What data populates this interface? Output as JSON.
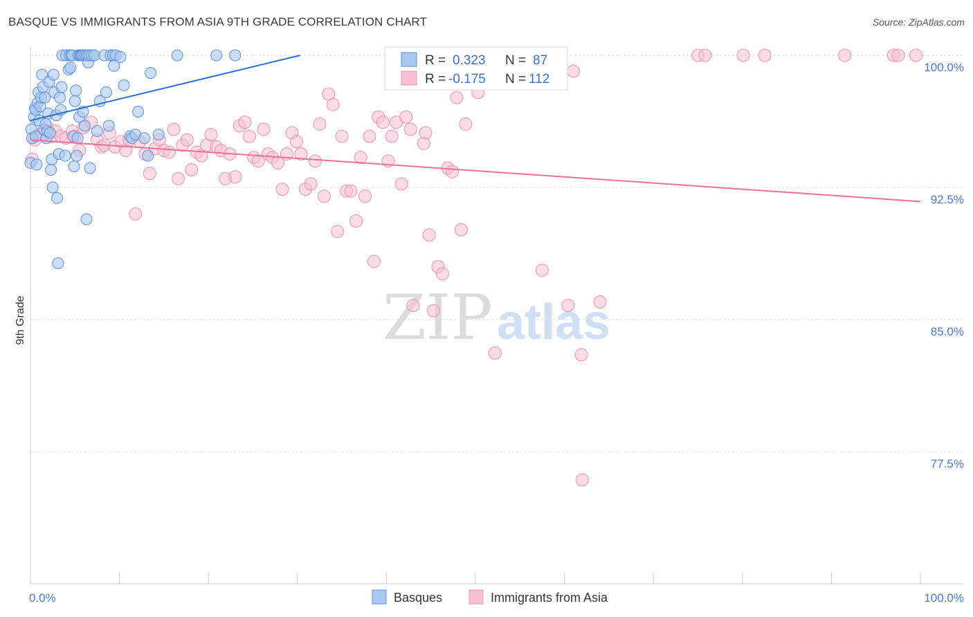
{
  "title": "BASQUE VS IMMIGRANTS FROM ASIA 9TH GRADE CORRELATION CHART",
  "source": "Source: ZipAtlas.com",
  "watermark": {
    "zip": "ZIP",
    "atlas": "atlas"
  },
  "legend": {
    "r_label": "R =",
    "n_label": "N =",
    "basque": {
      "r": "0.323",
      "n": "87"
    },
    "asia": {
      "r": "-0.175",
      "n": "112"
    }
  },
  "colors": {
    "basque_fill": "#aac8f0",
    "basque_stroke": "#5b8fd8",
    "basque_line": "#2a6ed1",
    "asia_fill": "#f8c0d2",
    "asia_stroke": "#ee90b0",
    "asia_line": "#e8709a",
    "axis_text": "#4a78c8",
    "grid": "#dddddd"
  },
  "chart_data": {
    "type": "scatter",
    "title": "BASQUE VS IMMIGRANTS FROM ASIA 9TH GRADE CORRELATION CHART",
    "xlabel": "",
    "ylabel": "9th Grade",
    "xlim": [
      0,
      100
    ],
    "ylim": [
      70.5,
      100.7
    ],
    "x_tick_labels": [
      "0.0%",
      "100.0%"
    ],
    "y_ticks": [
      {
        "value": 100.0,
        "label": "100.0%"
      },
      {
        "value": 92.5,
        "label": "92.5%"
      },
      {
        "value": 85.0,
        "label": "85.0%"
      },
      {
        "value": 77.5,
        "label": "77.5%"
      }
    ],
    "series": [
      {
        "name": "Basques",
        "r": 0.323,
        "n": 87,
        "trend": {
          "x": [
            0,
            30.3
          ],
          "y": [
            96.3,
            100.0
          ]
        },
        "points": [
          [
            0.0,
            93.9
          ],
          [
            0.1,
            95.8
          ],
          [
            0.2,
            95.3
          ],
          [
            0.4,
            96.5
          ],
          [
            0.5,
            97.0
          ],
          [
            0.6,
            96.9
          ],
          [
            0.6,
            95.4
          ],
          [
            0.7,
            93.8
          ],
          [
            0.8,
            97.3
          ],
          [
            0.9,
            97.9
          ],
          [
            1.0,
            96.3
          ],
          [
            1.1,
            97.1
          ],
          [
            1.2,
            97.6
          ],
          [
            1.3,
            98.9
          ],
          [
            1.4,
            98.2
          ],
          [
            1.5,
            95.8
          ],
          [
            1.6,
            97.6
          ],
          [
            1.7,
            96.1
          ],
          [
            1.8,
            95.3
          ],
          [
            1.9,
            95.7
          ],
          [
            2.0,
            96.7
          ],
          [
            2.1,
            98.5
          ],
          [
            2.2,
            95.6
          ],
          [
            2.3,
            93.5
          ],
          [
            2.4,
            94.1
          ],
          [
            2.5,
            92.5
          ],
          [
            2.6,
            98.9
          ],
          [
            2.7,
            97.9
          ],
          [
            2.9,
            96.6
          ],
          [
            3.0,
            91.9
          ],
          [
            3.1,
            88.2
          ],
          [
            3.2,
            94.4
          ],
          [
            3.3,
            97.6
          ],
          [
            3.4,
            96.9
          ],
          [
            3.5,
            98.2
          ],
          [
            3.6,
            100.0
          ],
          [
            3.9,
            94.3
          ],
          [
            4.0,
            100.0
          ],
          [
            4.3,
            99.2
          ],
          [
            4.4,
            100.0
          ],
          [
            4.5,
            99.3
          ],
          [
            4.6,
            100.0
          ],
          [
            4.7,
            100.0
          ],
          [
            4.8,
            95.4
          ],
          [
            4.9,
            93.7
          ],
          [
            5.0,
            97.4
          ],
          [
            5.1,
            98.0
          ],
          [
            5.2,
            94.3
          ],
          [
            5.3,
            95.3
          ],
          [
            5.4,
            100.0
          ],
          [
            5.5,
            96.5
          ],
          [
            5.6,
            100.0
          ],
          [
            5.7,
            100.0
          ],
          [
            5.8,
            100.0
          ],
          [
            5.9,
            96.8
          ],
          [
            6.0,
            100.0
          ],
          [
            6.1,
            96.0
          ],
          [
            6.2,
            100.0
          ],
          [
            6.3,
            90.7
          ],
          [
            6.4,
            100.0
          ],
          [
            6.5,
            99.6
          ],
          [
            6.6,
            100.0
          ],
          [
            6.7,
            93.6
          ],
          [
            6.9,
            100.0
          ],
          [
            7.2,
            100.0
          ],
          [
            7.5,
            95.7
          ],
          [
            7.8,
            97.4
          ],
          [
            8.3,
            100.0
          ],
          [
            8.5,
            97.9
          ],
          [
            8.8,
            96.0
          ],
          [
            9.0,
            100.0
          ],
          [
            9.3,
            100.0
          ],
          [
            9.4,
            99.4
          ],
          [
            9.6,
            100.0
          ],
          [
            10.1,
            99.9
          ],
          [
            10.5,
            98.3
          ],
          [
            11.2,
            95.4
          ],
          [
            11.4,
            95.3
          ],
          [
            11.8,
            95.5
          ],
          [
            12.1,
            96.8
          ],
          [
            12.8,
            95.3
          ],
          [
            13.2,
            94.3
          ],
          [
            13.5,
            99.0
          ],
          [
            14.4,
            95.5
          ],
          [
            16.5,
            100.0
          ],
          [
            20.9,
            100.0
          ],
          [
            23.0,
            100.0
          ]
        ]
      },
      {
        "name": "Immigrants from Asia",
        "r": -0.175,
        "n": 112,
        "trend": {
          "x": [
            0,
            100
          ],
          "y": [
            95.2,
            91.7
          ]
        },
        "points": [
          [
            0.2,
            94.1
          ],
          [
            0.5,
            95.2
          ],
          [
            1.0,
            95.5
          ],
          [
            1.4,
            95.5
          ],
          [
            1.9,
            95.9
          ],
          [
            2.4,
            95.4
          ],
          [
            2.8,
            95.7
          ],
          [
            3.4,
            95.4
          ],
          [
            4.0,
            95.3
          ],
          [
            4.7,
            95.7
          ],
          [
            5.0,
            95.4
          ],
          [
            5.5,
            94.6
          ],
          [
            6.0,
            95.9
          ],
          [
            6.8,
            96.2
          ],
          [
            7.5,
            95.2
          ],
          [
            8.0,
            94.8
          ],
          [
            8.3,
            94.9
          ],
          [
            8.9,
            95.6
          ],
          [
            9.5,
            94.8
          ],
          [
            10.2,
            95.1
          ],
          [
            10.7,
            94.6
          ],
          [
            11.1,
            95.2
          ],
          [
            11.8,
            91.0
          ],
          [
            12.3,
            95.1
          ],
          [
            12.9,
            94.4
          ],
          [
            13.4,
            93.3
          ],
          [
            14.0,
            94.7
          ],
          [
            14.5,
            95.2
          ],
          [
            15.0,
            94.6
          ],
          [
            15.6,
            94.5
          ],
          [
            16.1,
            95.8
          ],
          [
            16.6,
            93.0
          ],
          [
            17.1,
            94.9
          ],
          [
            17.6,
            95.2
          ],
          [
            18.1,
            93.5
          ],
          [
            18.7,
            94.5
          ],
          [
            19.2,
            94.3
          ],
          [
            19.8,
            94.9
          ],
          [
            20.3,
            95.5
          ],
          [
            20.9,
            94.8
          ],
          [
            21.4,
            94.6
          ],
          [
            21.9,
            93.0
          ],
          [
            22.4,
            94.4
          ],
          [
            23.0,
            93.1
          ],
          [
            23.5,
            96.0
          ],
          [
            24.1,
            96.2
          ],
          [
            24.6,
            95.4
          ],
          [
            25.1,
            94.2
          ],
          [
            25.6,
            94.0
          ],
          [
            26.2,
            95.8
          ],
          [
            26.7,
            94.4
          ],
          [
            27.2,
            94.2
          ],
          [
            27.8,
            93.9
          ],
          [
            28.3,
            92.4
          ],
          [
            28.8,
            94.4
          ],
          [
            29.4,
            95.6
          ],
          [
            29.9,
            95.1
          ],
          [
            30.4,
            94.4
          ],
          [
            30.9,
            92.4
          ],
          [
            31.5,
            92.7
          ],
          [
            32.0,
            94.0
          ],
          [
            32.5,
            96.1
          ],
          [
            33.0,
            92.0
          ],
          [
            33.5,
            97.8
          ],
          [
            34.0,
            97.2
          ],
          [
            34.5,
            90.0
          ],
          [
            35.0,
            95.4
          ],
          [
            35.5,
            92.3
          ],
          [
            36.0,
            92.3
          ],
          [
            36.6,
            90.6
          ],
          [
            37.1,
            94.2
          ],
          [
            37.6,
            92.0
          ],
          [
            38.1,
            95.4
          ],
          [
            38.6,
            88.3
          ],
          [
            39.1,
            96.5
          ],
          [
            39.6,
            96.2
          ],
          [
            40.2,
            94.0
          ],
          [
            40.6,
            95.4
          ],
          [
            41.1,
            96.2
          ],
          [
            41.7,
            92.7
          ],
          [
            42.2,
            96.5
          ],
          [
            42.7,
            95.8
          ],
          [
            43.0,
            85.8
          ],
          [
            44.2,
            95.0
          ],
          [
            44.4,
            95.6
          ],
          [
            44.8,
            89.8
          ],
          [
            45.3,
            85.5
          ],
          [
            45.8,
            88.0
          ],
          [
            46.3,
            87.6
          ],
          [
            46.9,
            93.6
          ],
          [
            47.4,
            93.4
          ],
          [
            47.9,
            97.6
          ],
          [
            48.4,
            90.1
          ],
          [
            48.9,
            96.1
          ],
          [
            50.3,
            97.9
          ],
          [
            52.2,
            83.1
          ],
          [
            55.0,
            100.0
          ],
          [
            55.6,
            100.0
          ],
          [
            57.5,
            87.8
          ],
          [
            60.4,
            85.8
          ],
          [
            61.0,
            99.1
          ],
          [
            61.9,
            83.0
          ],
          [
            62.0,
            75.9
          ],
          [
            64.0,
            86.0
          ],
          [
            75.0,
            100.0
          ],
          [
            75.8,
            100.0
          ],
          [
            80.1,
            100.0
          ],
          [
            82.5,
            100.0
          ],
          [
            91.5,
            100.0
          ],
          [
            97.0,
            100.0
          ],
          [
            97.5,
            100.0
          ],
          [
            99.5,
            100.0
          ]
        ]
      }
    ]
  },
  "bottom_legend": [
    "Basques",
    "Immigrants from Asia"
  ]
}
